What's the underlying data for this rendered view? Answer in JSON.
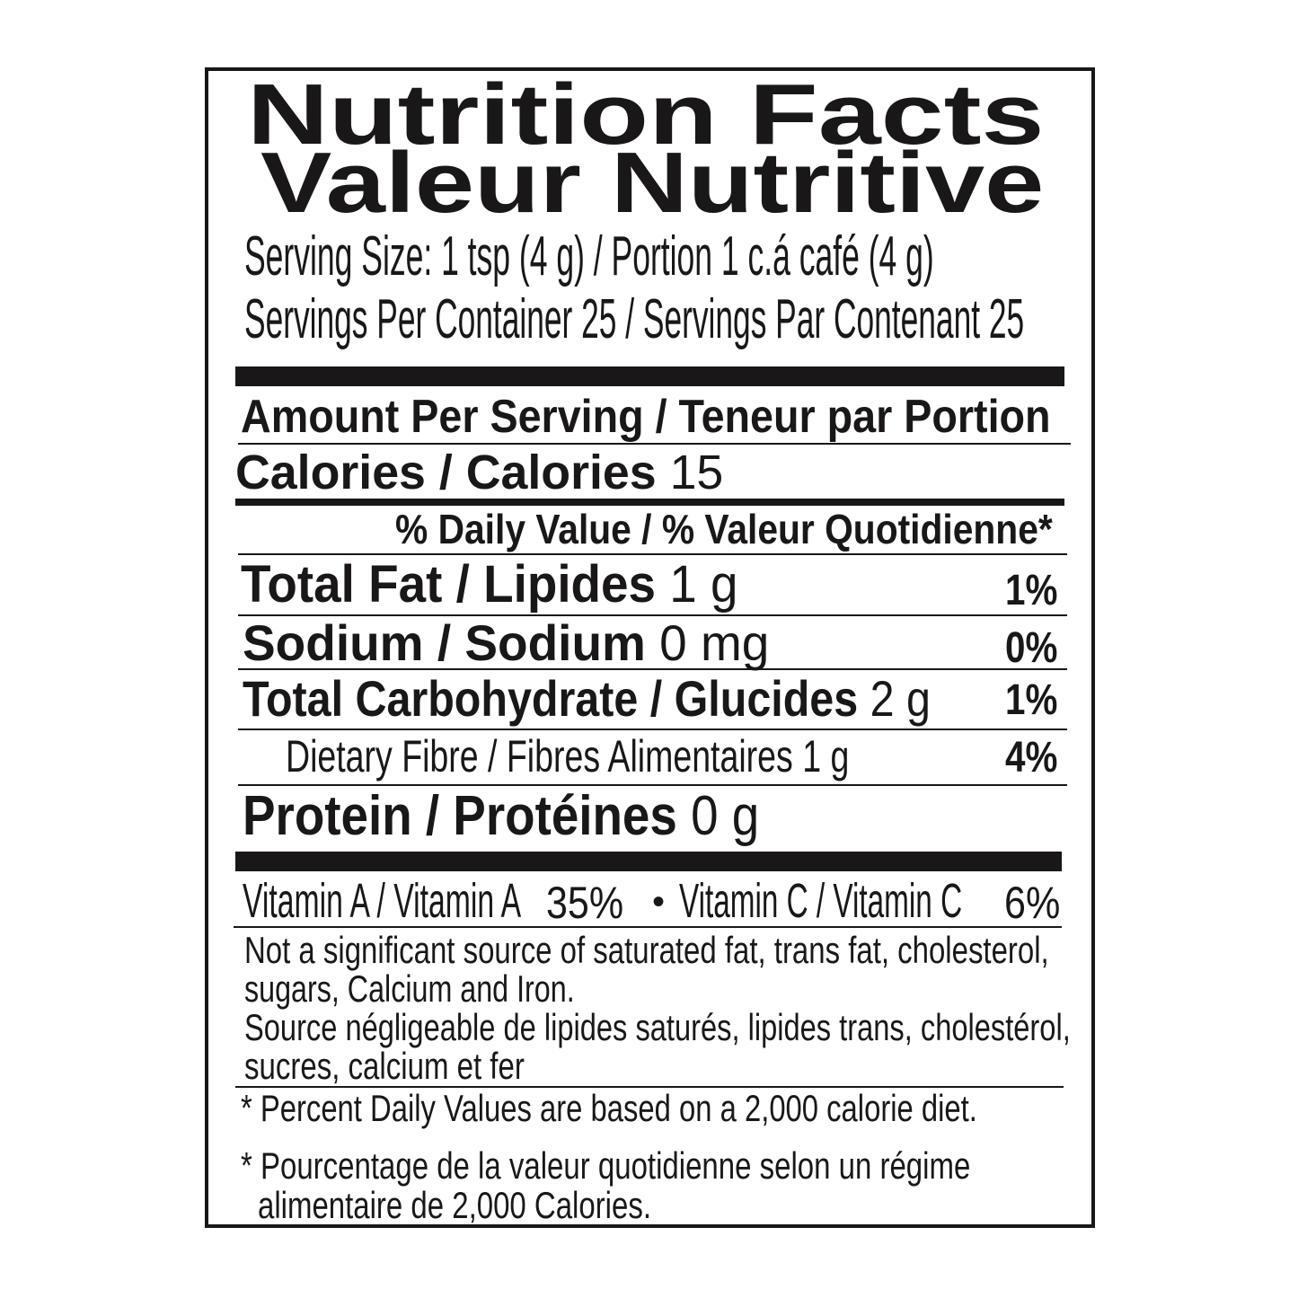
{
  "title_en": "Nutrition Facts",
  "title_fr": "Valeur Nutritive",
  "serving_size": "Serving Size: 1 tsp (4 g) / Portion 1 c.á café (4 g)",
  "servings_per_container": "Servings Per Container 25 / Servings Par Contenant 25",
  "amount_per_serving": "Amount Per Serving / Teneur par Portion",
  "calories": {
    "label": "Calories / Calories",
    "value": "15"
  },
  "daily_value_header": "% Daily Value / % Valeur Quotidienne*",
  "nutrients": [
    {
      "label": "Total Fat / Lipides",
      "amount": "1 g",
      "dv": "1%"
    },
    {
      "label": "Sodium / Sodium",
      "amount": "0 mg",
      "dv": "0%"
    },
    {
      "label": "Total Carbohydrate / Glucides",
      "amount": "2 g",
      "dv": "1%"
    },
    {
      "label": "Dietary Fibre / Fibres Alimentaires",
      "amount": "1 g",
      "dv": "4%"
    },
    {
      "label": "Protein / Protéines",
      "amount": "0 g"
    }
  ],
  "vitamins": {
    "a_label": "Vitamin A /  Vitamin A",
    "a_value": "35%",
    "separator": "•",
    "c_label": "Vitamin C /  Vitamin C",
    "c_value": "6%"
  },
  "not_significant": [
    "Not a significant source of saturated fat, trans fat, cholesterol,",
    "sugars, Calcium and Iron.",
    "Source négligeable de lipides saturés, lipides trans, cholestérol,",
    "sucres, calcium et fer"
  ],
  "footnote_en": "* Percent Daily Values are based on a 2,000 calorie diet.",
  "footnote_fr": [
    "* Pourcentage de la valeur quotidienne selon un régime",
    "alimentaire de 2,000 Calories."
  ]
}
